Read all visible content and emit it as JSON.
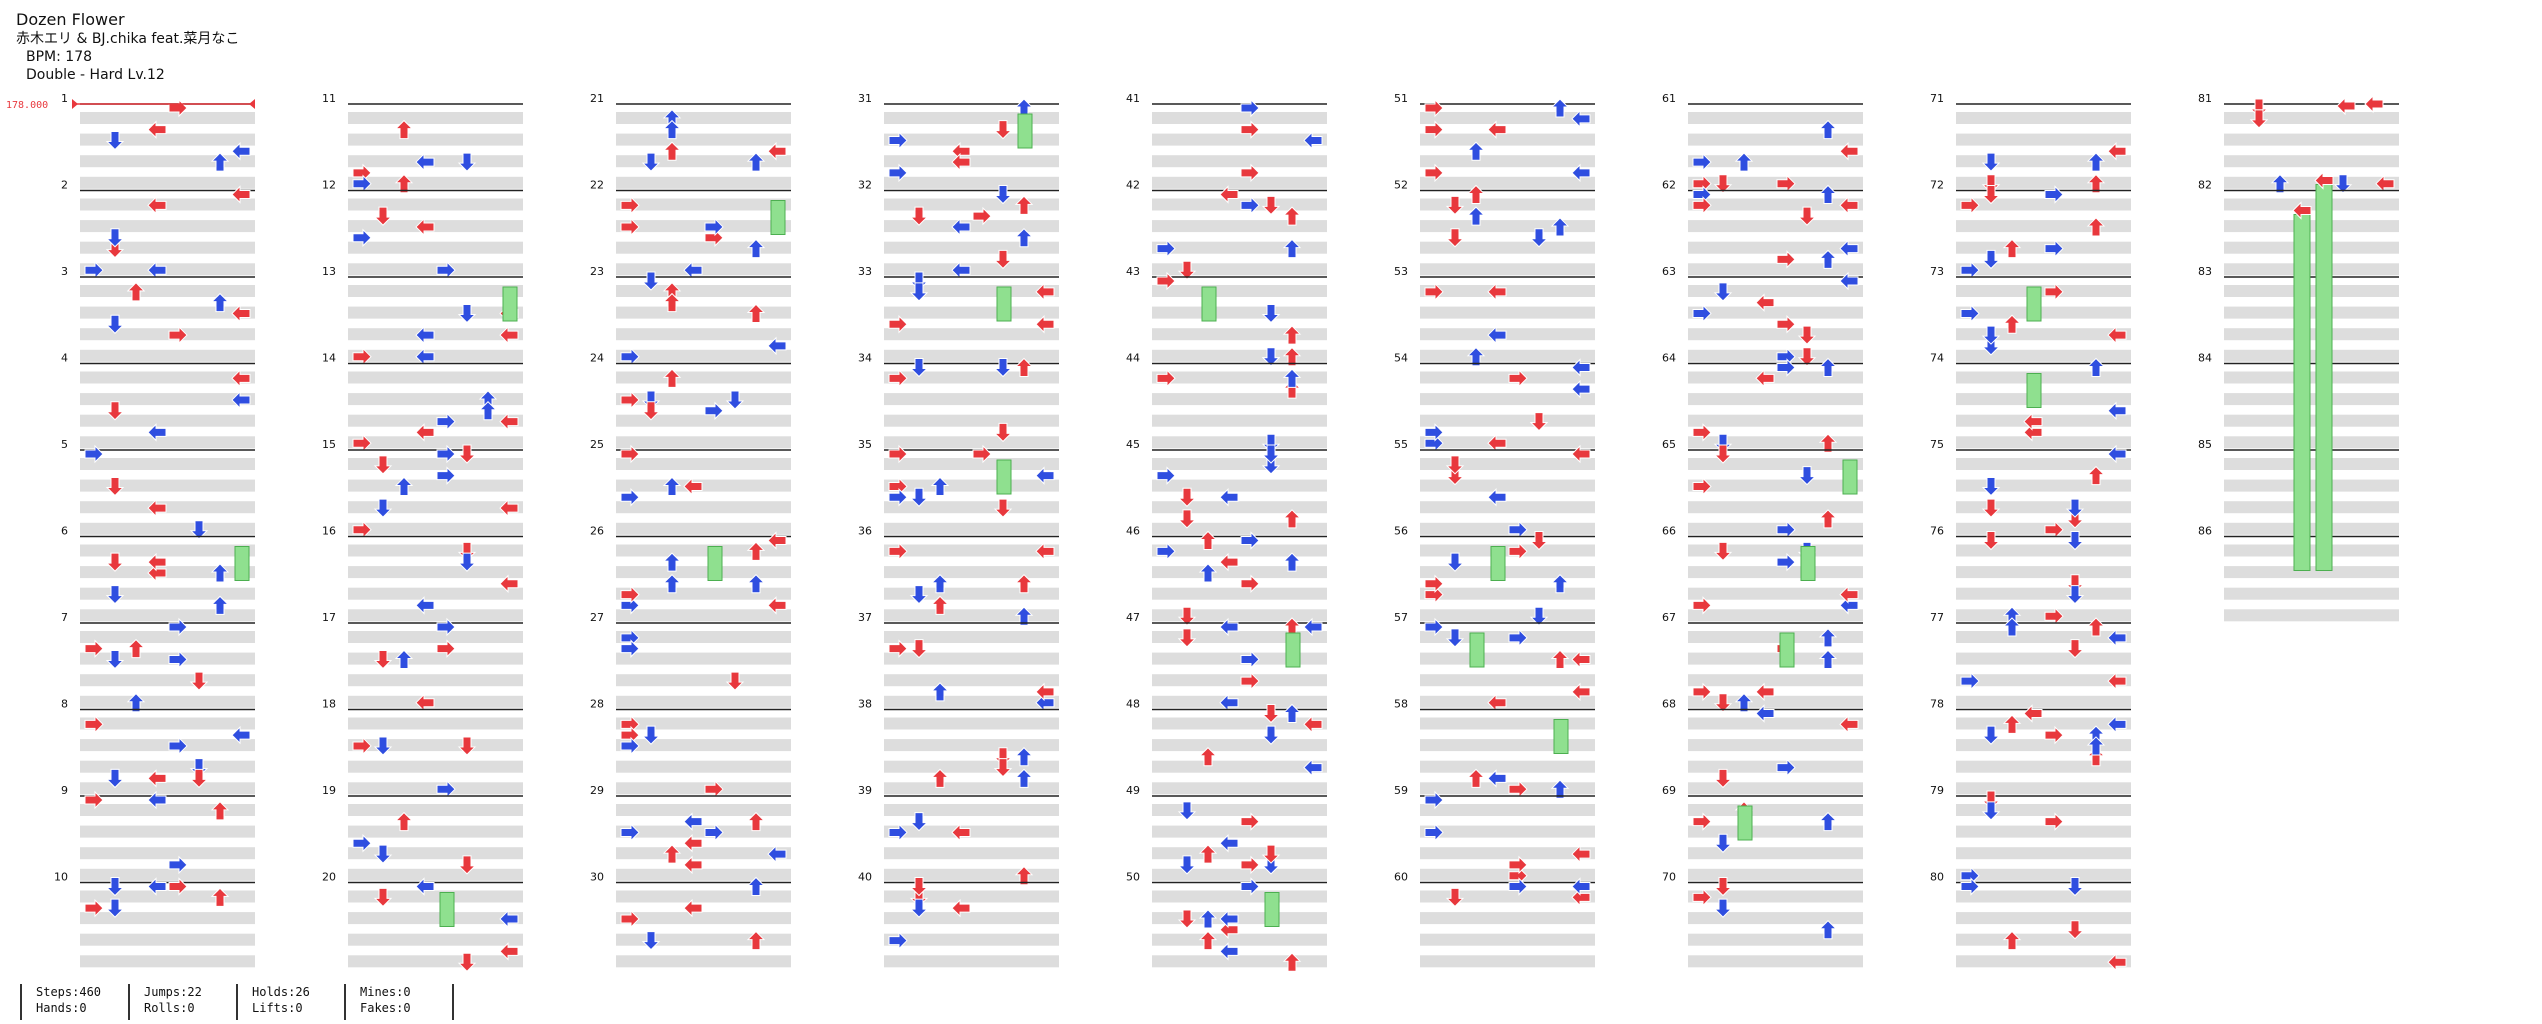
{
  "song": {
    "title": "Dozen Flower",
    "artist": "赤木エリ & BJ.chika feat.菜月なこ",
    "bpm_text": "BPM: 178",
    "difficulty_text": "Double - Hard Lv.12"
  },
  "bpm_marker": "178.000",
  "measure_count": 86,
  "colors": {
    "quarter": "#e8383d",
    "eighth": "#2f4ee0",
    "hold": "#8fe08f",
    "band": "#dddddd",
    "bar": "#222222"
  },
  "footer": {
    "steps": "Steps:460",
    "hands": "Hands:0",
    "jumps": "Jumps:22",
    "rolls": "Rolls:0",
    "holds": "Holds:26",
    "lifts": "Lifts:0",
    "mines": "Mines:0",
    "fakes": "Fakes:0"
  }
}
